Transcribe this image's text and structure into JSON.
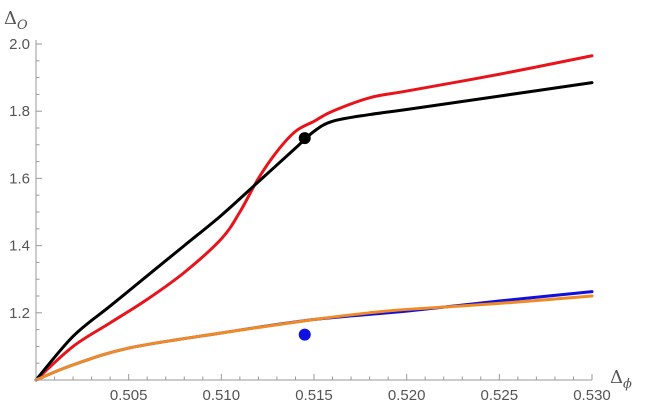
{
  "chart_data": {
    "type": "line",
    "title": "",
    "xlabel": {
      "symbol": "Δ",
      "subscript": "ϕ"
    },
    "ylabel": {
      "symbol": "Δ",
      "subscript": "O"
    },
    "xlim": [
      0.5,
      0.53
    ],
    "ylim": [
      1.0,
      2.0
    ],
    "xticks": [
      0.505,
      0.51,
      0.515,
      0.52,
      0.525,
      0.53
    ],
    "xtick_labels": [
      "0.505",
      "0.510",
      "0.515",
      "0.520",
      "0.525",
      "0.530"
    ],
    "yticks": [
      1.2,
      1.4,
      1.6,
      1.8,
      2.0
    ],
    "ytick_labels": [
      "1.2",
      "1.4",
      "1.6",
      "1.8",
      "2.0"
    ],
    "grid": false,
    "legend": "none",
    "series": [
      {
        "color": "#e8141b",
        "x": [
          0.5,
          0.502,
          0.504,
          0.506,
          0.508,
          0.51,
          0.511,
          0.512,
          0.513,
          0.514,
          0.515,
          0.516,
          0.518,
          0.52,
          0.525,
          0.53
        ],
        "y": [
          1.0,
          1.1,
          1.17,
          1.24,
          1.32,
          1.42,
          1.5,
          1.6,
          1.68,
          1.74,
          1.77,
          1.8,
          1.84,
          1.86,
          1.91,
          1.965
        ]
      },
      {
        "color": "#000000",
        "x": [
          0.5,
          0.502,
          0.504,
          0.506,
          0.508,
          0.51,
          0.512,
          0.514,
          0.515,
          0.516,
          0.518,
          0.52,
          0.525,
          0.53
        ],
        "y": [
          1.0,
          1.13,
          1.22,
          1.31,
          1.4,
          1.49,
          1.59,
          1.69,
          1.74,
          1.77,
          1.79,
          1.805,
          1.845,
          1.885
        ]
      },
      {
        "color": "#1010e0",
        "x": [
          0.5,
          0.502,
          0.505,
          0.51,
          0.515,
          0.52,
          0.525,
          0.53
        ],
        "y": [
          1.0,
          1.045,
          1.095,
          1.14,
          1.18,
          1.205,
          1.235,
          1.263
        ]
      },
      {
        "color": "#f08a24",
        "x": [
          0.5,
          0.502,
          0.505,
          0.51,
          0.515,
          0.518,
          0.52,
          0.525,
          0.53
        ],
        "y": [
          1.0,
          1.045,
          1.095,
          1.14,
          1.18,
          1.2,
          1.21,
          1.228,
          1.25
        ]
      }
    ],
    "points": [
      {
        "x": 0.5145,
        "y": 1.72,
        "color": "#000000"
      },
      {
        "x": 0.5145,
        "y": 1.135,
        "color": "#1010e0"
      }
    ]
  }
}
